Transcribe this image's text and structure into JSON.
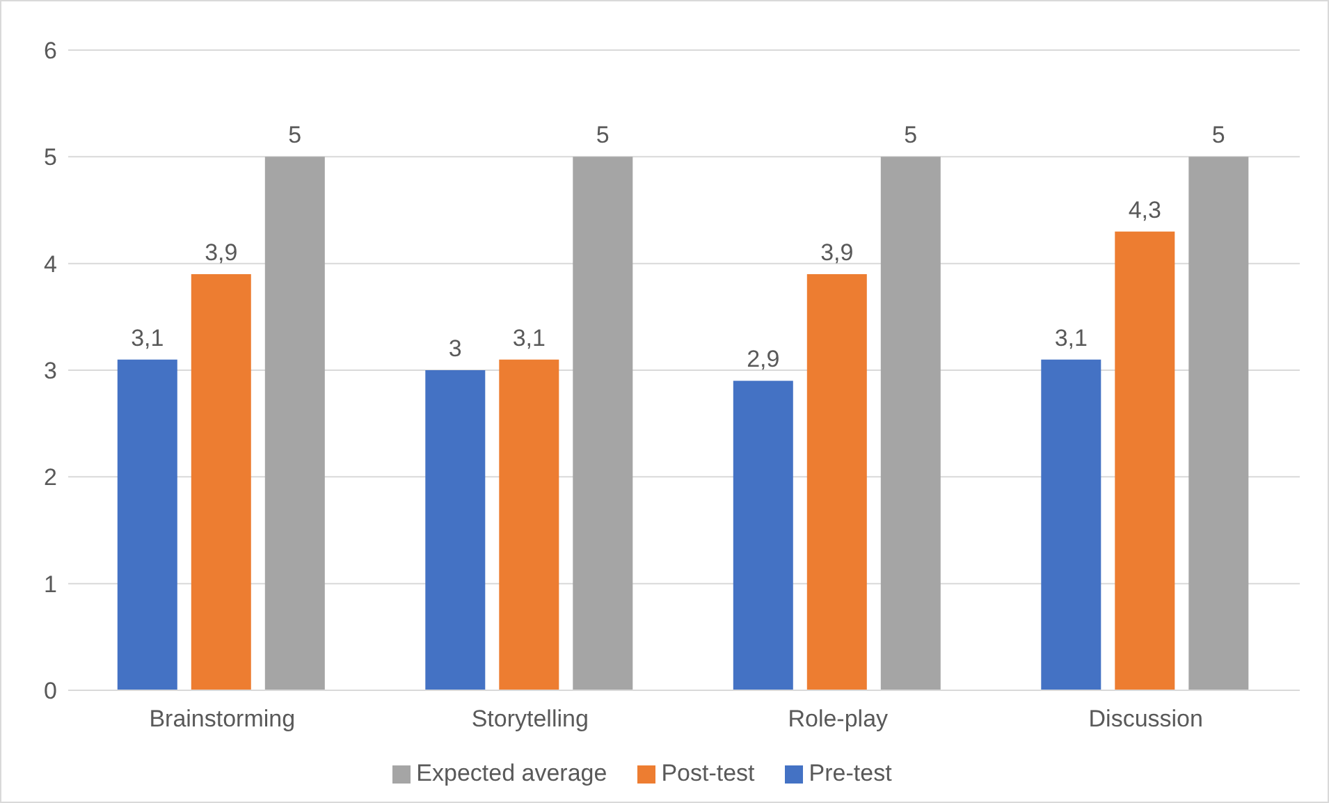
{
  "chart_data": {
    "type": "bar",
    "categories": [
      "Brainstorming",
      "Storytelling",
      "Role-play",
      "Discussion"
    ],
    "series": [
      {
        "name": "Pre-test",
        "color": "#4472c4",
        "values": [
          3.1,
          3,
          2.9,
          3.1
        ],
        "value_labels": [
          "3,1",
          "3",
          "2,9",
          "3,1"
        ]
      },
      {
        "name": "Post-test",
        "color": "#ed7d31",
        "values": [
          3.9,
          3.1,
          3.9,
          4.3
        ],
        "value_labels": [
          "3,9",
          "3,1",
          "3,9",
          "4,3"
        ]
      },
      {
        "name": "Expected average",
        "color": "#a5a5a5",
        "values": [
          5,
          5,
          5,
          5
        ],
        "value_labels": [
          "5",
          "5",
          "5",
          "5"
        ]
      }
    ],
    "ylim": [
      0,
      6
    ],
    "yticks": [
      0,
      1,
      2,
      3,
      4,
      5,
      6
    ],
    "grid": "y",
    "legend": "bottom"
  }
}
